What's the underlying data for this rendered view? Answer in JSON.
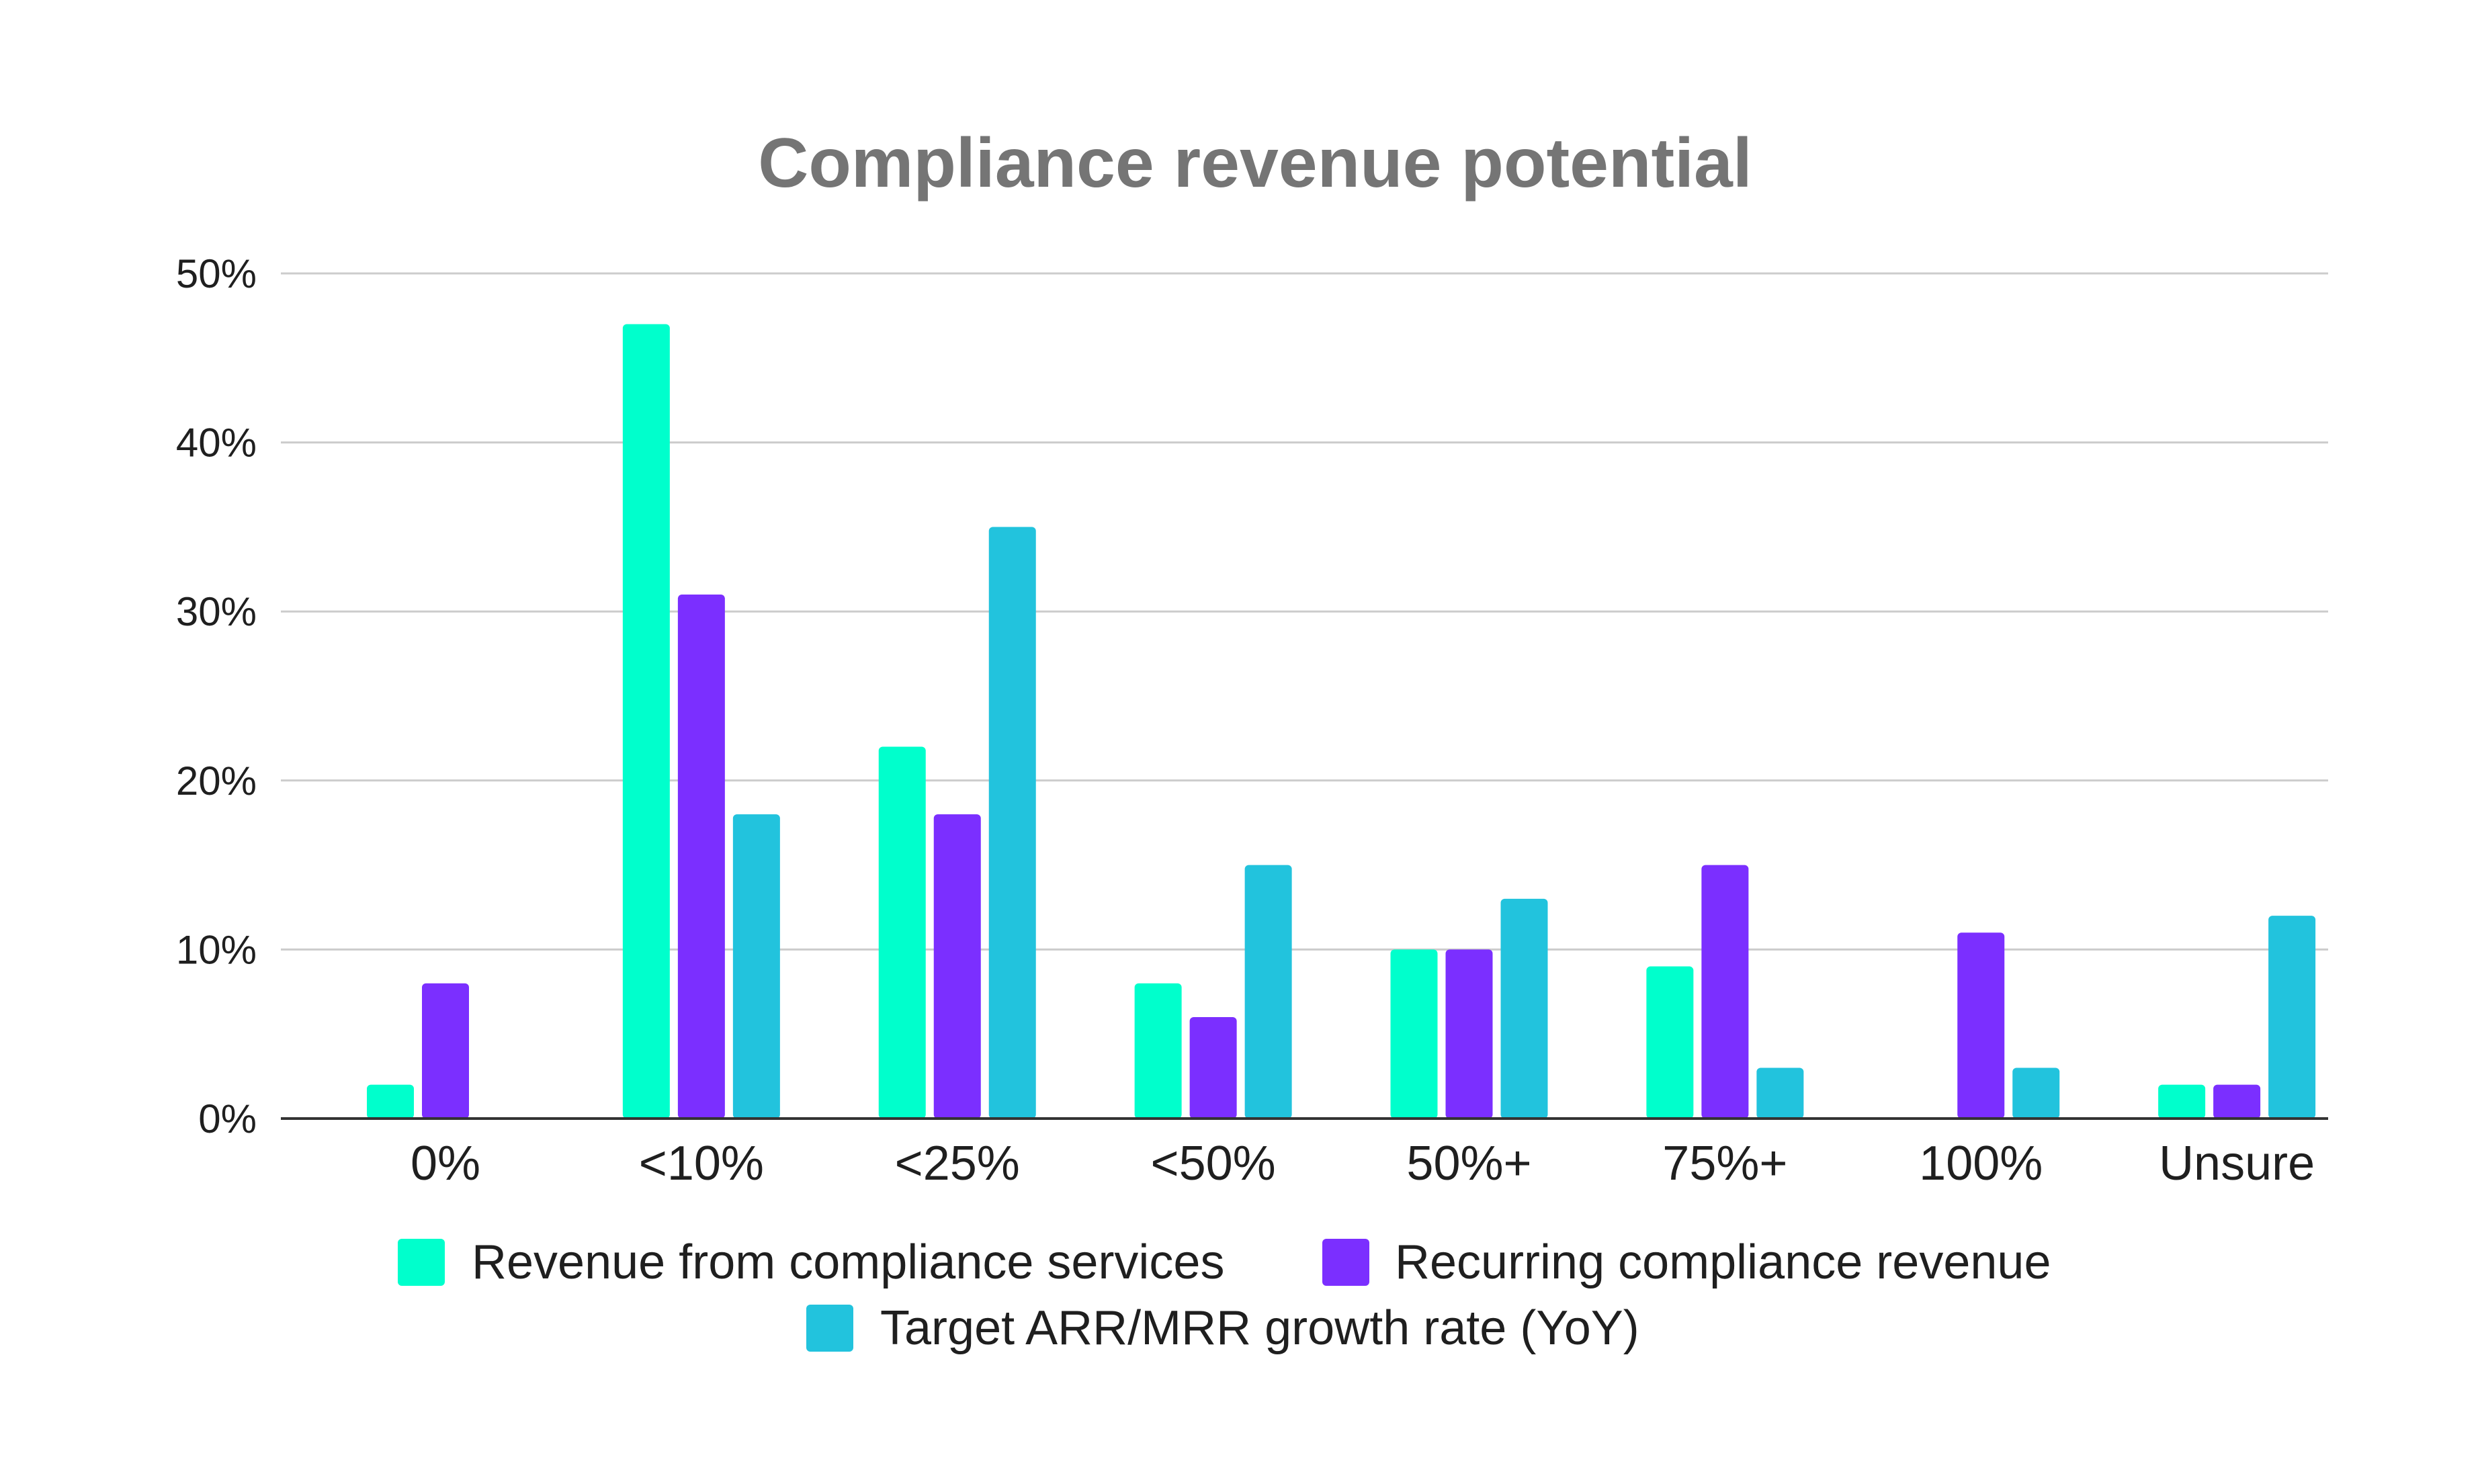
{
  "chart_data": {
    "type": "bar",
    "title": "Compliance revenue potential",
    "xlabel": "",
    "ylabel": "",
    "ylim": [
      0,
      50
    ],
    "yticks": [
      0,
      10,
      20,
      30,
      40,
      50
    ],
    "ytick_labels": [
      "0%",
      "10%",
      "20%",
      "30%",
      "40%",
      "50%"
    ],
    "grid": true,
    "legend_position": "bottom",
    "categories": [
      "0%",
      "<10%",
      "<25%",
      "<50%",
      "50%+",
      "75%+",
      "100%",
      "Unsure"
    ],
    "series": [
      {
        "name": "Revenue from compliance services",
        "color": "#00FFCC",
        "values": [
          2,
          47,
          22,
          8,
          10,
          9,
          0,
          2
        ]
      },
      {
        "name": "Recurring compliance revenue",
        "color": "#7B2FFF",
        "values": [
          8,
          31,
          18,
          6,
          10,
          15,
          11,
          2
        ]
      },
      {
        "name": "Target ARR/MRR growth rate (YoY)",
        "color": "#22C3DD",
        "values": [
          0,
          18,
          35,
          15,
          13,
          3,
          3,
          12
        ]
      }
    ]
  }
}
